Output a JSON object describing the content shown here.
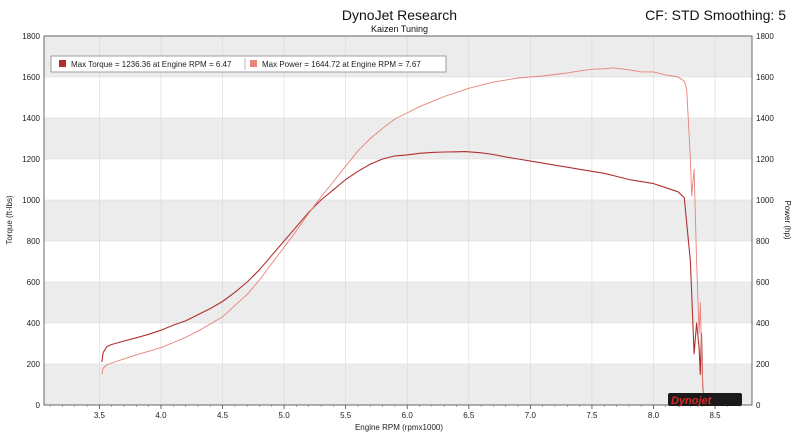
{
  "header": {
    "title": "DynoJet Research",
    "subtitle": "Kaizen Tuning",
    "cf_text": "CF: STD Smoothing: 5"
  },
  "logo": {
    "text": "Dynojet"
  },
  "colors": {
    "torque": "#b03030",
    "power": "#e8827a",
    "band": "#ececec",
    "grid": "#d8d8d8"
  },
  "chart_data": {
    "type": "line",
    "xlabel": "Engine RPM (rpmx1000)",
    "ylabel_left": "Torque (ft-lbs)",
    "ylabel_right": "Power (hp)",
    "xlim": [
      3.05,
      8.8
    ],
    "ylim": [
      0,
      1800
    ],
    "x_ticks": [
      "3.5",
      "4.0",
      "4.5",
      "5.0",
      "5.5",
      "6.0",
      "6.5",
      "7.0",
      "7.5",
      "8.0",
      "8.5"
    ],
    "y_ticks": [
      "0",
      "200",
      "400",
      "600",
      "800",
      "1000",
      "1200",
      "1400",
      "1600",
      "1800"
    ],
    "legend": {
      "placement": "top-left",
      "entries": [
        "Max Torque = 1236.36 at Engine RPM = 6.47",
        "Max Power = 1644.72 at Engine RPM = 7.67"
      ]
    },
    "series": [
      {
        "name": "Torque",
        "x": [
          3.52,
          3.53,
          3.56,
          3.6,
          3.7,
          3.8,
          3.9,
          4.0,
          4.1,
          4.2,
          4.3,
          4.4,
          4.5,
          4.6,
          4.7,
          4.8,
          4.9,
          5.0,
          5.1,
          5.2,
          5.3,
          5.4,
          5.5,
          5.6,
          5.7,
          5.8,
          5.9,
          6.0,
          6.1,
          6.2,
          6.3,
          6.4,
          6.47,
          6.6,
          6.7,
          6.8,
          6.9,
          7.0,
          7.1,
          7.2,
          7.3,
          7.4,
          7.5,
          7.6,
          7.7,
          7.8,
          7.9,
          8.0,
          8.1,
          8.2,
          8.25,
          8.3,
          8.33,
          8.35,
          8.37,
          8.38,
          8.39,
          8.4,
          8.41,
          8.42
        ],
        "values": [
          210,
          255,
          285,
          295,
          312,
          328,
          345,
          365,
          390,
          410,
          440,
          470,
          505,
          550,
          600,
          660,
          730,
          800,
          870,
          940,
          1000,
          1050,
          1100,
          1140,
          1175,
          1200,
          1215,
          1220,
          1228,
          1232,
          1234,
          1235,
          1236,
          1230,
          1222,
          1210,
          1200,
          1190,
          1180,
          1170,
          1160,
          1150,
          1140,
          1130,
          1115,
          1100,
          1090,
          1080,
          1060,
          1040,
          1010,
          700,
          250,
          400,
          280,
          150,
          350,
          90,
          40,
          5
        ]
      },
      {
        "name": "Power",
        "x": [
          3.52,
          3.53,
          3.56,
          3.6,
          3.7,
          3.8,
          3.9,
          4.0,
          4.1,
          4.2,
          4.3,
          4.4,
          4.5,
          4.6,
          4.7,
          4.8,
          4.9,
          5.0,
          5.1,
          5.2,
          5.3,
          5.4,
          5.5,
          5.6,
          5.7,
          5.8,
          5.9,
          6.0,
          6.1,
          6.2,
          6.3,
          6.4,
          6.5,
          6.6,
          6.7,
          6.8,
          6.9,
          7.0,
          7.1,
          7.2,
          7.3,
          7.4,
          7.5,
          7.6,
          7.67,
          7.8,
          7.9,
          8.0,
          8.1,
          8.2,
          8.25,
          8.27,
          8.3,
          8.31,
          8.33,
          8.35,
          8.37,
          8.38,
          8.39,
          8.4,
          8.41,
          8.42
        ],
        "values": [
          150,
          180,
          195,
          205,
          225,
          245,
          262,
          280,
          305,
          330,
          360,
          395,
          430,
          485,
          540,
          610,
          690,
          770,
          850,
          935,
          1015,
          1090,
          1165,
          1240,
          1300,
          1350,
          1395,
          1425,
          1455,
          1480,
          1505,
          1525,
          1545,
          1560,
          1575,
          1585,
          1595,
          1600,
          1605,
          1612,
          1620,
          1630,
          1638,
          1640,
          1644.72,
          1635,
          1625,
          1625,
          1610,
          1600,
          1580,
          1540,
          1200,
          1020,
          1150,
          700,
          350,
          500,
          250,
          100,
          40,
          5
        ]
      }
    ]
  }
}
